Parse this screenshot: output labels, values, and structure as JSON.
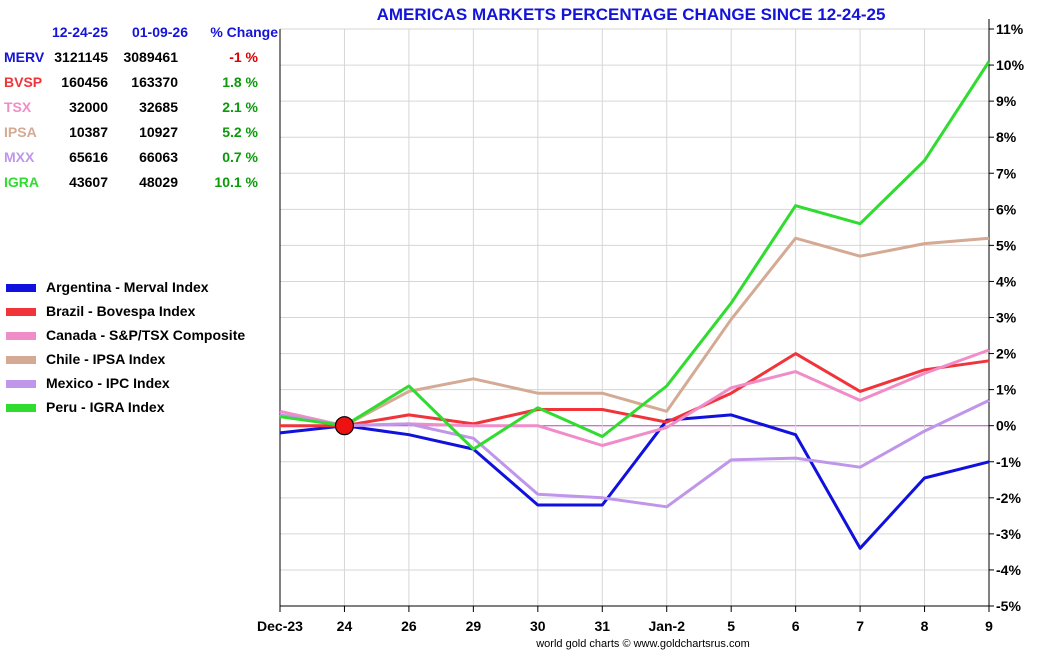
{
  "chart_data": {
    "type": "line",
    "title": "AMERICAS MARKETS PERCENTAGE CHANGE SINCE 12-24-25",
    "credit": "world gold charts © www.goldchartsrus.com",
    "categories": [
      "Dec-23",
      "24",
      "26",
      "29",
      "30",
      "31",
      "Jan-2",
      "5",
      "6",
      "7",
      "8",
      "9"
    ],
    "ylim": [
      -5,
      11
    ],
    "yticks": [
      -5,
      -4,
      -3,
      -2,
      -1,
      0,
      1,
      2,
      3,
      4,
      5,
      6,
      7,
      8,
      9,
      10,
      11
    ],
    "ytick_labels": [
      "-5%",
      "-4%",
      "-3%",
      "-2%",
      "-1%",
      "0%",
      "1%",
      "2%",
      "3%",
      "4%",
      "5%",
      "6%",
      "7%",
      "8%",
      "9%",
      "10%",
      "11%"
    ],
    "base_marker_category": "24",
    "series": [
      {
        "name": "Argentina - Merval Index",
        "color": "#1111dd",
        "values": [
          -0.2,
          0,
          -0.25,
          -0.65,
          -2.2,
          -2.2,
          0.15,
          0.3,
          -0.25,
          -3.4,
          -1.45,
          -1.0
        ]
      },
      {
        "name": "Brazil - Bovespa Index",
        "color": "#f0343a",
        "values": [
          0,
          0,
          0.3,
          0.05,
          0.45,
          0.45,
          0.1,
          0.9,
          2.0,
          0.95,
          1.55,
          1.8
        ]
      },
      {
        "name": "Canada - S&P/TSX Composite",
        "color": "#f08cc8",
        "values": [
          0.4,
          0,
          0.05,
          0,
          0,
          -0.55,
          -0.05,
          1.05,
          1.5,
          0.7,
          1.45,
          2.1
        ]
      },
      {
        "name": "Chile - IPSA Index",
        "color": "#d4aa94",
        "values": [
          0.3,
          0,
          0.95,
          1.3,
          0.9,
          0.9,
          0.4,
          2.95,
          5.2,
          4.7,
          5.05,
          5.2
        ]
      },
      {
        "name": "Mexico - IPC Index",
        "color": "#bf96ea",
        "values": [
          0.3,
          0,
          0.05,
          -0.35,
          -1.9,
          -2.0,
          -2.25,
          -0.95,
          -0.9,
          -1.15,
          -0.15,
          0.7
        ]
      },
      {
        "name": "Peru - IGRA Index",
        "color": "#2fdc2f",
        "values": [
          0.25,
          0,
          1.1,
          -0.65,
          0.5,
          -0.3,
          1.1,
          3.4,
          6.1,
          5.6,
          7.35,
          10.1
        ]
      }
    ]
  },
  "table": {
    "headers": {
      "date1": "12-24-25",
      "date2": "01-09-26",
      "change": "% Change"
    },
    "rows": [
      {
        "code": "MERV",
        "code_color": "#1414d8",
        "v1": "3121145",
        "v2": "3089461",
        "change": "-1 %",
        "change_color": "#dd0000"
      },
      {
        "code": "BVSP",
        "code_color": "#f0343a",
        "v1": "160456",
        "v2": "163370",
        "change": "1.8 %",
        "change_color": "#0a9a0a"
      },
      {
        "code": "TSX",
        "code_color": "#f08cc8",
        "v1": "32000",
        "v2": "32685",
        "change": "2.1 %",
        "change_color": "#0a9a0a"
      },
      {
        "code": "IPSA",
        "code_color": "#d4aa94",
        "v1": "10387",
        "v2": "10927",
        "change": "5.2 %",
        "change_color": "#0a9a0a"
      },
      {
        "code": "MXX",
        "code_color": "#bf96ea",
        "v1": "65616",
        "v2": "66063",
        "change": "0.7 %",
        "change_color": "#0a9a0a"
      },
      {
        "code": "IGRA",
        "code_color": "#2fdc2f",
        "v1": "43607",
        "v2": "48029",
        "change": "10.1 %",
        "change_color": "#0a9a0a"
      }
    ]
  }
}
